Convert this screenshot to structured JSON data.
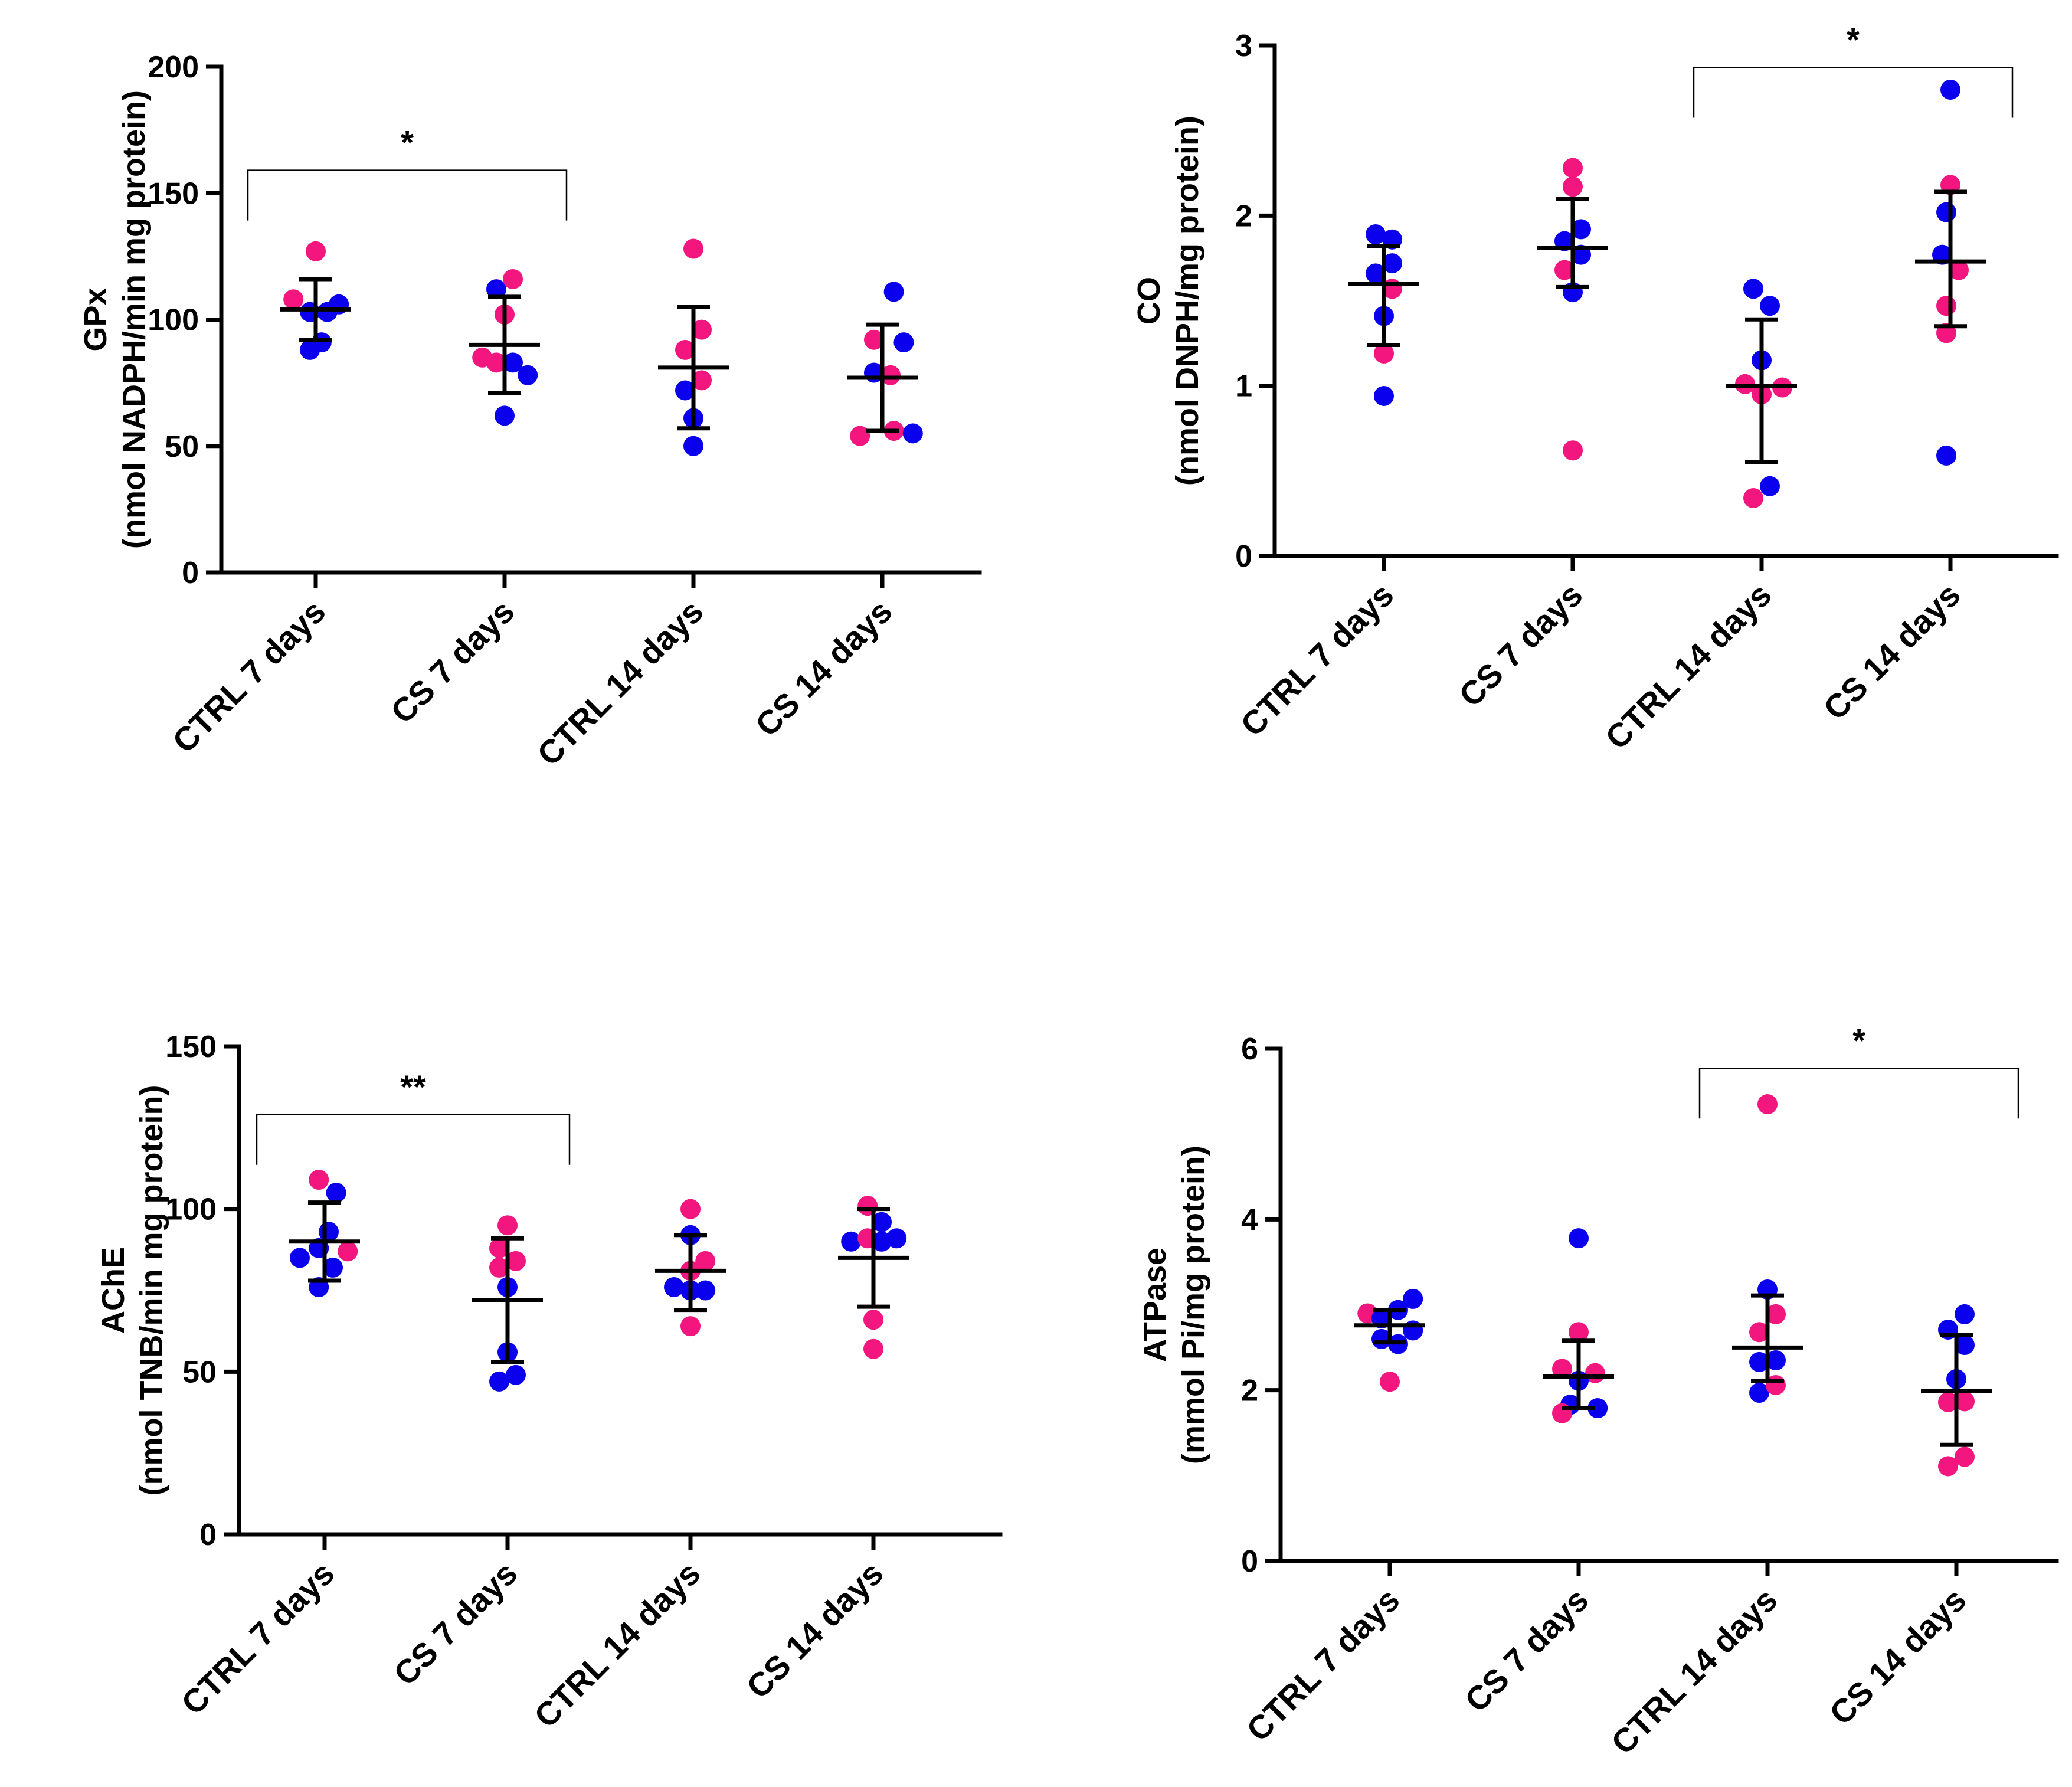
{
  "chart_data": [
    {
      "id": "gpx",
      "type": "scatter",
      "ylabel": [
        "GPx",
        "(nmol  NADPH/min mg protein)"
      ],
      "ylim": [
        0,
        200
      ],
      "yticks": [
        0,
        50,
        100,
        150,
        200
      ],
      "categories": [
        "CTRL 7 days",
        "CS 7 days",
        "CTRL 14 days",
        "CS 14 days"
      ],
      "points": [
        [
          {
            "offset": -0.27,
            "y": 108,
            "color": "pink"
          },
          {
            "offset": 0.0,
            "y": 127,
            "color": "pink"
          },
          {
            "offset": -0.07,
            "y": 103,
            "color": "blue"
          },
          {
            "offset": 0.14,
            "y": 103,
            "color": "blue"
          },
          {
            "offset": 0.28,
            "y": 106,
            "color": "blue"
          },
          {
            "offset": -0.07,
            "y": 88,
            "color": "blue"
          },
          {
            "offset": 0.07,
            "y": 91,
            "color": "blue"
          }
        ],
        [
          {
            "offset": -0.27,
            "y": 85,
            "color": "pink"
          },
          {
            "offset": -0.1,
            "y": 112,
            "color": "blue"
          },
          {
            "offset": 0.1,
            "y": 116,
            "color": "pink"
          },
          {
            "offset": 0.0,
            "y": 102,
            "color": "pink"
          },
          {
            "offset": -0.1,
            "y": 83,
            "color": "pink"
          },
          {
            "offset": 0.1,
            "y": 83,
            "color": "blue"
          },
          {
            "offset": 0.28,
            "y": 78,
            "color": "blue"
          },
          {
            "offset": 0.0,
            "y": 62,
            "color": "blue"
          }
        ],
        [
          {
            "offset": 0.0,
            "y": 128,
            "color": "pink"
          },
          {
            "offset": 0.1,
            "y": 96,
            "color": "pink"
          },
          {
            "offset": -0.1,
            "y": 88,
            "color": "pink"
          },
          {
            "offset": -0.1,
            "y": 72,
            "color": "blue"
          },
          {
            "offset": 0.1,
            "y": 76,
            "color": "pink"
          },
          {
            "offset": 0.0,
            "y": 61,
            "color": "blue"
          },
          {
            "offset": 0.0,
            "y": 50,
            "color": "blue"
          }
        ],
        [
          {
            "offset": 0.14,
            "y": 111,
            "color": "blue"
          },
          {
            "offset": -0.1,
            "y": 92,
            "color": "pink"
          },
          {
            "offset": 0.26,
            "y": 91,
            "color": "blue"
          },
          {
            "offset": -0.1,
            "y": 79,
            "color": "blue"
          },
          {
            "offset": 0.1,
            "y": 78,
            "color": "pink"
          },
          {
            "offset": -0.27,
            "y": 54,
            "color": "pink"
          },
          {
            "offset": 0.14,
            "y": 56,
            "color": "pink"
          },
          {
            "offset": 0.37,
            "y": 55,
            "color": "blue"
          }
        ]
      ],
      "summary": [
        {
          "mean": 104,
          "upper": 116,
          "lower": 92
        },
        {
          "mean": 90,
          "upper": 109,
          "lower": 71
        },
        {
          "mean": 81,
          "upper": 105,
          "lower": 57
        },
        {
          "mean": 77,
          "upper": 98,
          "lower": 56
        }
      ],
      "significance": [
        {
          "from": 0,
          "to": 1,
          "label": "*",
          "y": 159
        }
      ]
    },
    {
      "id": "co",
      "type": "scatter",
      "ylabel": [
        "CO",
        "(nmol DNPH/mg protein)"
      ],
      "ylim": [
        0,
        3
      ],
      "yticks": [
        0,
        1,
        2,
        3
      ],
      "categories": [
        "CTRL 7 days",
        "CS 7 days",
        "CTRL 14 days",
        "CS 14 days"
      ],
      "points": [
        [
          {
            "offset": -0.1,
            "y": 1.89,
            "color": "blue"
          },
          {
            "offset": 0.1,
            "y": 1.86,
            "color": "blue"
          },
          {
            "offset": 0.1,
            "y": 1.72,
            "color": "blue"
          },
          {
            "offset": -0.1,
            "y": 1.66,
            "color": "blue"
          },
          {
            "offset": 0.1,
            "y": 1.57,
            "color": "pink"
          },
          {
            "offset": 0.0,
            "y": 1.41,
            "color": "blue"
          },
          {
            "offset": 0.0,
            "y": 1.19,
            "color": "pink"
          },
          {
            "offset": 0.0,
            "y": 0.94,
            "color": "blue"
          }
        ],
        [
          {
            "offset": 0.0,
            "y": 2.28,
            "color": "pink"
          },
          {
            "offset": 0.0,
            "y": 2.17,
            "color": "pink"
          },
          {
            "offset": 0.1,
            "y": 1.92,
            "color": "blue"
          },
          {
            "offset": -0.1,
            "y": 1.85,
            "color": "blue"
          },
          {
            "offset": 0.1,
            "y": 1.77,
            "color": "blue"
          },
          {
            "offset": -0.1,
            "y": 1.68,
            "color": "pink"
          },
          {
            "offset": 0.0,
            "y": 1.55,
            "color": "blue"
          },
          {
            "offset": 0.0,
            "y": 0.62,
            "color": "pink"
          }
        ],
        [
          {
            "offset": -0.1,
            "y": 1.57,
            "color": "blue"
          },
          {
            "offset": 0.1,
            "y": 1.47,
            "color": "blue"
          },
          {
            "offset": 0.0,
            "y": 1.15,
            "color": "blue"
          },
          {
            "offset": -0.2,
            "y": 1.01,
            "color": "pink"
          },
          {
            "offset": 0.25,
            "y": 0.99,
            "color": "pink"
          },
          {
            "offset": 0.0,
            "y": 0.95,
            "color": "pink"
          },
          {
            "offset": -0.1,
            "y": 0.34,
            "color": "pink"
          },
          {
            "offset": 0.1,
            "y": 0.41,
            "color": "blue"
          }
        ],
        [
          {
            "offset": 0.0,
            "y": 2.74,
            "color": "blue"
          },
          {
            "offset": 0.0,
            "y": 2.18,
            "color": "pink"
          },
          {
            "offset": -0.05,
            "y": 2.02,
            "color": "blue"
          },
          {
            "offset": -0.1,
            "y": 1.77,
            "color": "blue"
          },
          {
            "offset": 0.1,
            "y": 1.68,
            "color": "pink"
          },
          {
            "offset": -0.05,
            "y": 1.47,
            "color": "pink"
          },
          {
            "offset": -0.05,
            "y": 1.31,
            "color": "pink"
          },
          {
            "offset": -0.05,
            "y": 0.59,
            "color": "blue"
          }
        ]
      ],
      "summary": [
        {
          "mean": 1.6,
          "upper": 1.82,
          "lower": 1.24
        },
        {
          "mean": 1.81,
          "upper": 2.1,
          "lower": 1.58
        },
        {
          "mean": 1.0,
          "upper": 1.39,
          "lower": 0.55
        },
        {
          "mean": 1.73,
          "upper": 2.14,
          "lower": 1.35
        }
      ],
      "significance": [
        {
          "from": 2,
          "to": 3,
          "label": "*",
          "y": 2.87
        }
      ]
    },
    {
      "id": "ache",
      "type": "scatter",
      "ylabel": [
        "AChE",
        "(nmol TNB/min mg protein)"
      ],
      "ylim": [
        0,
        150
      ],
      "yticks": [
        0,
        50,
        100,
        150
      ],
      "categories": [
        "CTRL 7 days",
        "CS 7 days",
        "CTRL 14 days",
        "CS 14 days"
      ],
      "points": [
        [
          {
            "offset": -0.07,
            "y": 109,
            "color": "pink"
          },
          {
            "offset": 0.14,
            "y": 105,
            "color": "blue"
          },
          {
            "offset": 0.05,
            "y": 93,
            "color": "blue"
          },
          {
            "offset": -0.07,
            "y": 88,
            "color": "blue"
          },
          {
            "offset": 0.28,
            "y": 87,
            "color": "pink"
          },
          {
            "offset": -0.3,
            "y": 85,
            "color": "blue"
          },
          {
            "offset": 0.1,
            "y": 82,
            "color": "blue"
          },
          {
            "offset": -0.07,
            "y": 76,
            "color": "blue"
          }
        ],
        [
          {
            "offset": 0.0,
            "y": 95,
            "color": "pink"
          },
          {
            "offset": -0.1,
            "y": 88,
            "color": "pink"
          },
          {
            "offset": -0.1,
            "y": 82,
            "color": "pink"
          },
          {
            "offset": 0.1,
            "y": 84,
            "color": "pink"
          },
          {
            "offset": 0.0,
            "y": 76,
            "color": "blue"
          },
          {
            "offset": 0.0,
            "y": 56,
            "color": "blue"
          },
          {
            "offset": -0.1,
            "y": 47,
            "color": "blue"
          },
          {
            "offset": 0.1,
            "y": 49,
            "color": "blue"
          }
        ],
        [
          {
            "offset": 0.0,
            "y": 100,
            "color": "pink"
          },
          {
            "offset": 0.0,
            "y": 92,
            "color": "blue"
          },
          {
            "offset": 0.0,
            "y": 81,
            "color": "pink"
          },
          {
            "offset": 0.18,
            "y": 84,
            "color": "pink"
          },
          {
            "offset": -0.2,
            "y": 76,
            "color": "blue"
          },
          {
            "offset": 0.0,
            "y": 75,
            "color": "blue"
          },
          {
            "offset": 0.18,
            "y": 75,
            "color": "blue"
          },
          {
            "offset": 0.0,
            "y": 64,
            "color": "pink"
          }
        ],
        [
          {
            "offset": -0.07,
            "y": 101,
            "color": "pink"
          },
          {
            "offset": 0.1,
            "y": 96,
            "color": "blue"
          },
          {
            "offset": -0.27,
            "y": 90,
            "color": "blue"
          },
          {
            "offset": -0.07,
            "y": 91,
            "color": "pink"
          },
          {
            "offset": 0.1,
            "y": 90,
            "color": "blue"
          },
          {
            "offset": 0.28,
            "y": 91,
            "color": "blue"
          },
          {
            "offset": 0.0,
            "y": 66,
            "color": "pink"
          },
          {
            "offset": 0.0,
            "y": 57,
            "color": "pink"
          }
        ]
      ],
      "summary": [
        {
          "mean": 90,
          "upper": 102,
          "lower": 78
        },
        {
          "mean": 72,
          "upper": 91,
          "lower": 53
        },
        {
          "mean": 81,
          "upper": 92,
          "lower": 69
        },
        {
          "mean": 85,
          "upper": 100,
          "lower": 70
        }
      ],
      "significance": [
        {
          "from": 0,
          "to": 1,
          "label": "**",
          "y": 129
        }
      ]
    },
    {
      "id": "atpase",
      "type": "scatter",
      "ylabel": [
        "ATPase",
        "(mmol Pi/mg protein)"
      ],
      "ylim": [
        0,
        6
      ],
      "yticks": [
        0,
        2,
        4,
        6
      ],
      "categories": [
        "CTRL 7 days",
        "CS 7 days",
        "CTRL 14 days",
        "CS 14 days"
      ],
      "points": [
        [
          {
            "offset": -0.27,
            "y": 2.9,
            "color": "pink"
          },
          {
            "offset": -0.1,
            "y": 2.84,
            "color": "blue"
          },
          {
            "offset": 0.1,
            "y": 2.94,
            "color": "blue"
          },
          {
            "offset": 0.28,
            "y": 3.07,
            "color": "blue"
          },
          {
            "offset": 0.28,
            "y": 2.7,
            "color": "blue"
          },
          {
            "offset": -0.1,
            "y": 2.6,
            "color": "blue"
          },
          {
            "offset": 0.1,
            "y": 2.54,
            "color": "blue"
          },
          {
            "offset": 0.0,
            "y": 2.1,
            "color": "pink"
          }
        ],
        [
          {
            "offset": 0.0,
            "y": 3.78,
            "color": "blue"
          },
          {
            "offset": 0.0,
            "y": 2.68,
            "color": "pink"
          },
          {
            "offset": -0.2,
            "y": 2.25,
            "color": "pink"
          },
          {
            "offset": 0.2,
            "y": 2.2,
            "color": "pink"
          },
          {
            "offset": 0.0,
            "y": 2.11,
            "color": "blue"
          },
          {
            "offset": -0.1,
            "y": 1.83,
            "color": "blue"
          },
          {
            "offset": 0.23,
            "y": 1.79,
            "color": "blue"
          },
          {
            "offset": -0.2,
            "y": 1.73,
            "color": "pink"
          }
        ],
        [
          {
            "offset": 0.0,
            "y": 5.35,
            "color": "pink"
          },
          {
            "offset": 0.0,
            "y": 3.18,
            "color": "blue"
          },
          {
            "offset": 0.1,
            "y": 2.89,
            "color": "pink"
          },
          {
            "offset": -0.1,
            "y": 2.68,
            "color": "pink"
          },
          {
            "offset": -0.1,
            "y": 2.33,
            "color": "blue"
          },
          {
            "offset": 0.1,
            "y": 2.35,
            "color": "blue"
          },
          {
            "offset": -0.1,
            "y": 1.97,
            "color": "blue"
          },
          {
            "offset": 0.1,
            "y": 2.06,
            "color": "pink"
          }
        ],
        [
          {
            "offset": 0.1,
            "y": 2.89,
            "color": "blue"
          },
          {
            "offset": -0.1,
            "y": 2.71,
            "color": "blue"
          },
          {
            "offset": 0.1,
            "y": 2.53,
            "color": "blue"
          },
          {
            "offset": 0.0,
            "y": 2.13,
            "color": "blue"
          },
          {
            "offset": -0.1,
            "y": 1.86,
            "color": "pink"
          },
          {
            "offset": 0.1,
            "y": 1.87,
            "color": "pink"
          },
          {
            "offset": 0.1,
            "y": 1.22,
            "color": "pink"
          },
          {
            "offset": -0.1,
            "y": 1.11,
            "color": "pink"
          }
        ]
      ],
      "summary": [
        {
          "mean": 2.76,
          "upper": 2.94,
          "lower": 2.56
        },
        {
          "mean": 2.16,
          "upper": 2.58,
          "lower": 1.79
        },
        {
          "mean": 2.5,
          "upper": 3.11,
          "lower": 2.11
        },
        {
          "mean": 1.99,
          "upper": 2.65,
          "lower": 1.36
        }
      ],
      "significance": [
        {
          "from": 2,
          "to": 3,
          "label": "*",
          "y": 5.77
        }
      ]
    }
  ],
  "colors": {
    "pink": "#f2167e",
    "blue": "#0b00ee",
    "axis": "#000000"
  }
}
